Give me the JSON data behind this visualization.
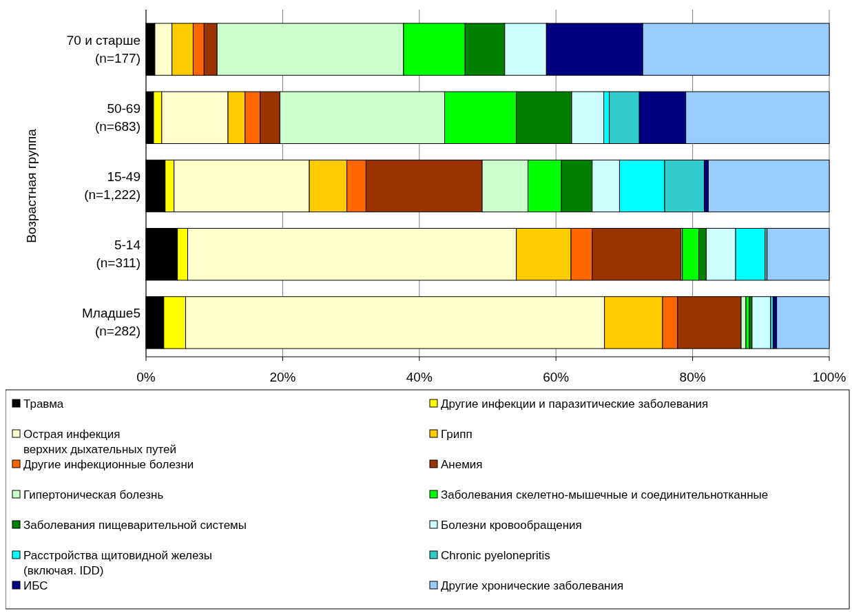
{
  "chart_data": {
    "type": "bar",
    "orientation": "horizontal",
    "stacked": true,
    "ylabel": "Возрастная группа",
    "categories": [
      "70 и старше\n(n=177)",
      "50-69\n(n=683)",
      "15-49\n(n=1,222)",
      "5-14\n(n=311)",
      "Младше5\n(n=282)"
    ],
    "xlim": [
      0,
      100
    ],
    "xticks": [
      {
        "value": 0,
        "label": "0%"
      },
      {
        "value": 20,
        "label": "20%"
      },
      {
        "value": 40,
        "label": "40%"
      },
      {
        "value": 60,
        "label": "60%"
      },
      {
        "value": 80,
        "label": "80%"
      },
      {
        "value": 100,
        "label": "100%"
      }
    ],
    "grid": "x",
    "legend": "bottom",
    "series": [
      {
        "name": "Травма",
        "color": "#000000",
        "values": [
          1.3,
          1.1,
          2.8,
          4.6,
          2.6
        ]
      },
      {
        "name": "Другие инфекции и паразитические заболевания",
        "color": "#ffff00",
        "values": [
          0,
          1.2,
          1.3,
          1.5,
          3.2
        ]
      },
      {
        "name": "Острая инфекция\nверхних дыхательных путей",
        "color": "#ffffcc",
        "values": [
          2.5,
          9.7,
          19.8,
          48.1,
          61.3
        ]
      },
      {
        "name": "Грипп",
        "color": "#ffcc00",
        "values": [
          3.1,
          2.5,
          5.5,
          8.0,
          8.5
        ]
      },
      {
        "name": "Другие инфекционные болезни",
        "color": "#ff6600",
        "values": [
          1.6,
          2.2,
          2.8,
          3.1,
          2.2
        ]
      },
      {
        "name": "Анемия",
        "color": "#993300",
        "values": [
          1.9,
          2.9,
          17.0,
          13.0,
          9.3
        ]
      },
      {
        "name": "Гипертоническая болезнь",
        "color": "#ccffcc",
        "values": [
          27.3,
          24.1,
          6.7,
          0.2,
          0.7
        ]
      },
      {
        "name": "Заболевания скелетно-мышечные и соединительнотканные",
        "color": "#00ff00",
        "values": [
          9.0,
          10.5,
          4.9,
          2.4,
          0.5
        ]
      },
      {
        "name": "Заболевания пищеварительной системы",
        "color": "#008000",
        "values": [
          5.8,
          8.1,
          4.5,
          1.1,
          0.4
        ]
      },
      {
        "name": "Болезни кровообращения",
        "color": "#ccffff",
        "values": [
          6.1,
          4.7,
          4.0,
          4.3,
          2.7
        ]
      },
      {
        "name": "Расстройства щитовидной железы\n(включая. IDD)",
        "color": "#00ffff",
        "values": [
          0,
          0.8,
          6.6,
          4.3,
          0
        ]
      },
      {
        "name": "Chronic pyelonepritis",
        "color": "#33cccc",
        "values": [
          0,
          4.4,
          5.8,
          0.3,
          0.4
        ]
      },
      {
        "name": "ИБС",
        "color": "#000080",
        "values": [
          14.1,
          6.8,
          0.6,
          0,
          0.5
        ]
      },
      {
        "name": "Другие хронические заболевания",
        "color": "#99ccff",
        "values": [
          27.3,
          21.0,
          17.7,
          9.1,
          7.7
        ]
      }
    ]
  }
}
